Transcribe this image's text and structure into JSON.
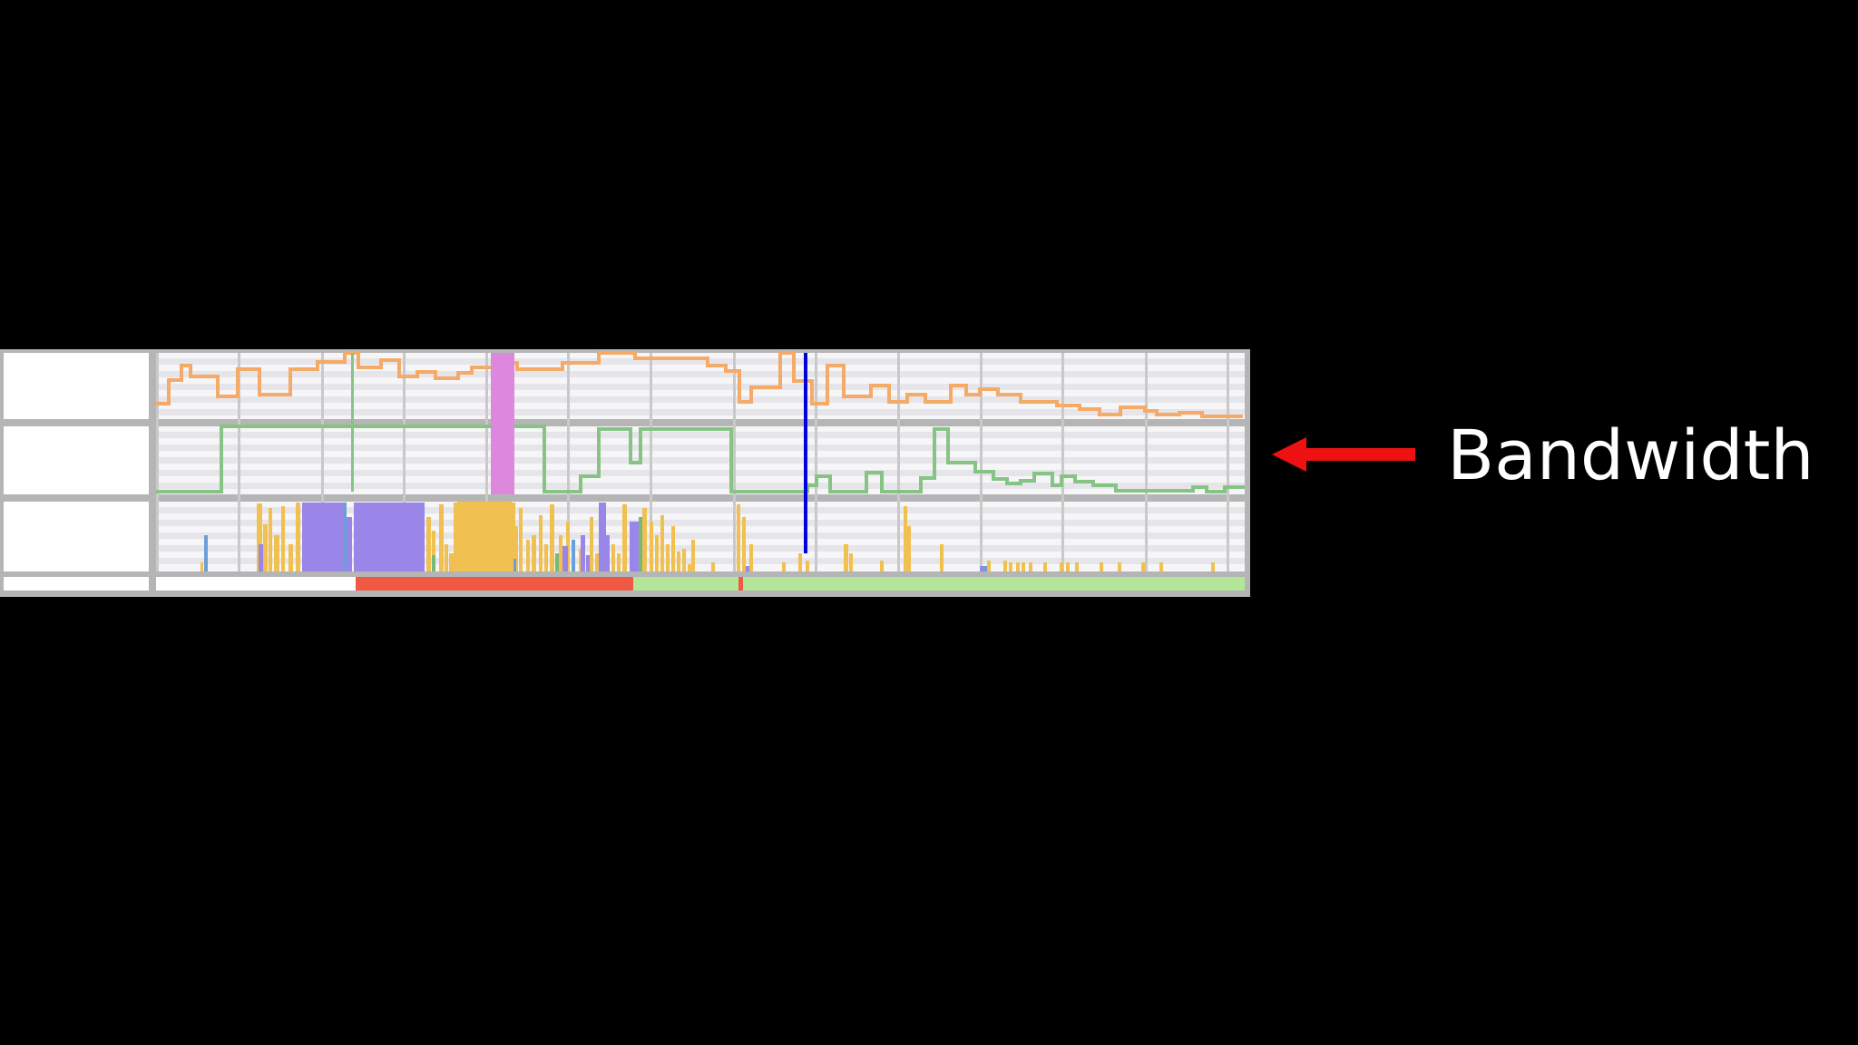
{
  "annotation": {
    "label": "Bandwidth",
    "arrow_color": "#ee1111"
  },
  "colors": {
    "cpu_line": "#f5aa68",
    "bandwidth_line": "#86c486",
    "main_thread_activity": [
      "#f0c050",
      "#9a85e8",
      "#6a9fd8",
      "#7ab87a"
    ],
    "marker_line": "#0000dd",
    "highlight_band": "#dd88dd",
    "status_bad": "#f05a45",
    "status_good": "#b4e69a"
  },
  "tracks": [
    "cpu",
    "bandwidth",
    "main-thread",
    "status"
  ]
}
